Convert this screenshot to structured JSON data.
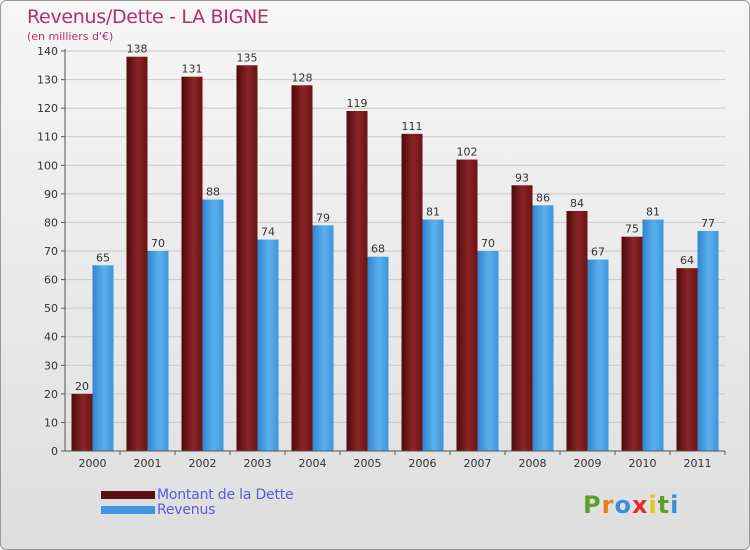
{
  "chart_data": {
    "type": "bar",
    "title": "Revenus/Dette - LA BIGNE",
    "unit_label": "(en milliers d'€)",
    "categories": [
      "2000",
      "2001",
      "2002",
      "2003",
      "2004",
      "2005",
      "2006",
      "2007",
      "2008",
      "2009",
      "2010",
      "2011"
    ],
    "series": [
      {
        "name": "Montant de la Dette",
        "color": "#7a1a1c",
        "values": [
          20,
          138,
          131,
          135,
          128,
          119,
          111,
          102,
          93,
          84,
          75,
          64
        ]
      },
      {
        "name": "Revenus",
        "color": "#4aa0e2",
        "values": [
          65,
          70,
          88,
          74,
          79,
          68,
          81,
          70,
          86,
          67,
          81,
          77
        ]
      }
    ],
    "ylim": [
      0,
      140
    ],
    "yticks": [
      0,
      10,
      20,
      30,
      40,
      50,
      60,
      70,
      80,
      90,
      100,
      110,
      120,
      130,
      140
    ],
    "grid": true,
    "legend_position": "bottom-left"
  },
  "brand": {
    "letters": [
      "P",
      "r",
      "o",
      "x",
      "i",
      "t",
      "i"
    ],
    "colors": [
      "#5aa02c",
      "#e8801a",
      "#3a8fd8",
      "#e23030",
      "#e8c21a",
      "#5aa02c",
      "#3a8fd8"
    ]
  }
}
